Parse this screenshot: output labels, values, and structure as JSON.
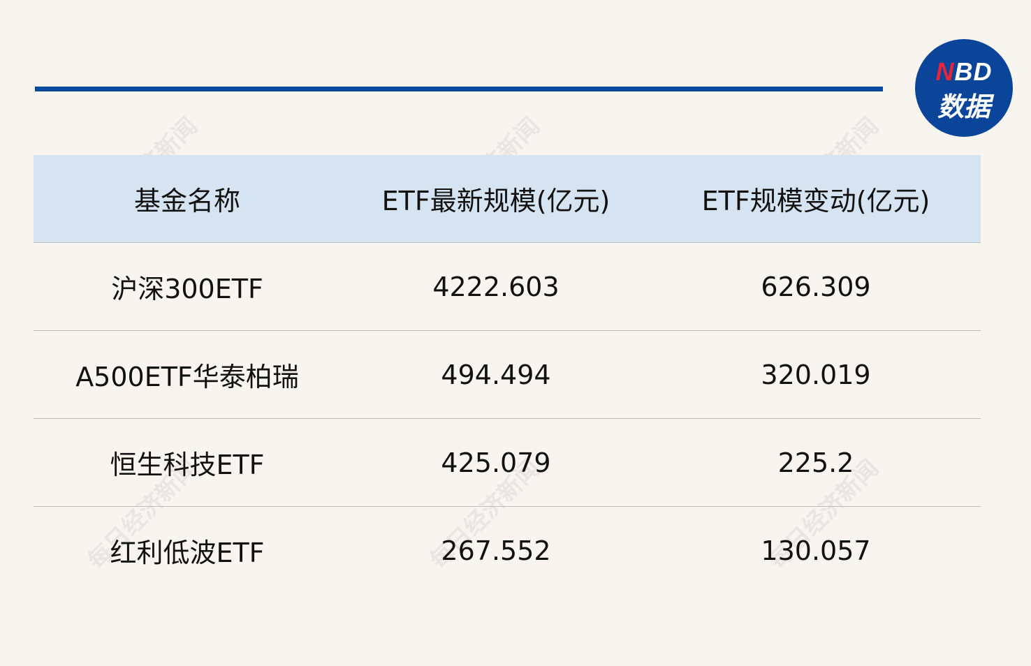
{
  "logo": {
    "text_red": "N",
    "text_rest": "BD",
    "subtitle": "数据",
    "colors": {
      "circle": "#0b4599",
      "accent": "#e5263a"
    }
  },
  "watermark": "每日经济新闻",
  "table": {
    "headers": [
      "基金名称",
      "ETF最新规模(亿元)",
      "ETF规模变动(亿元)"
    ],
    "rows": [
      [
        "沪深300ETF",
        "4222.603",
        "626.309"
      ],
      [
        "A500ETF华泰柏瑞",
        "494.494",
        "320.019"
      ],
      [
        "恒生科技ETF",
        "425.079",
        "225.2"
      ],
      [
        "红利低波ETF",
        "267.552",
        "130.057"
      ]
    ]
  },
  "colors": {
    "header_bg": "#d6e4f1",
    "top_line": "#0a4a9c",
    "background": "#f8f5f1"
  }
}
